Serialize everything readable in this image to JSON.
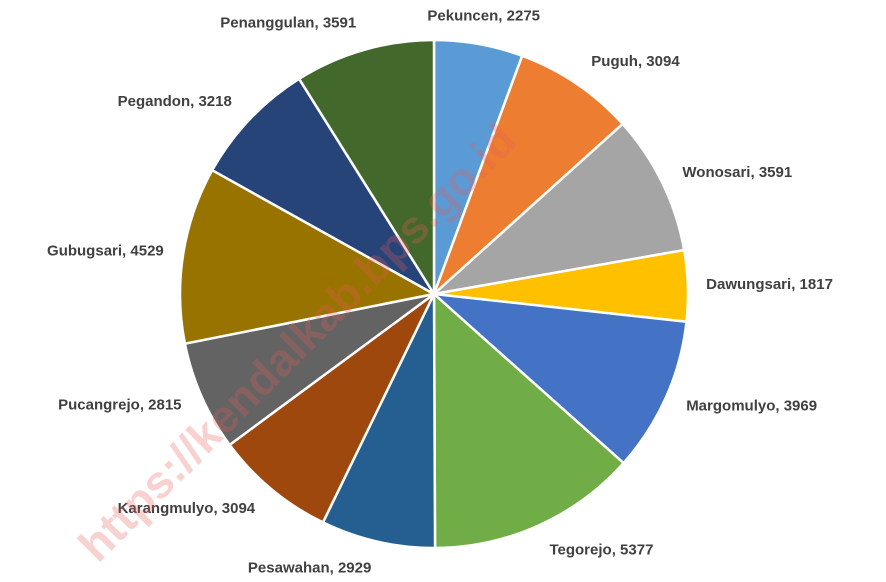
{
  "chart_data": {
    "type": "pie",
    "categories": [
      "Pekuncen",
      "Puguh",
      "Wonosari",
      "Dawungsari",
      "Margomulyo",
      "Tegorejo",
      "Pesawahan",
      "Karangmulyo",
      "Pucangrejo",
      "Gubugsari",
      "Pegandon",
      "Penanggulan"
    ],
    "values": [
      2275,
      3094,
      3591,
      1817,
      3969,
      5377,
      2929,
      3094,
      2815,
      4529,
      3218,
      3591
    ],
    "colors": [
      "#5b9bd5",
      "#ed7d31",
      "#a5a5a5",
      "#ffc000",
      "#4472c4",
      "#70ad47",
      "#255e91",
      "#9e480e",
      "#636363",
      "#997300",
      "#264478",
      "#43682b"
    ],
    "label_separator": ", ",
    "watermark": "https://kendalkab.bps.go.id"
  }
}
